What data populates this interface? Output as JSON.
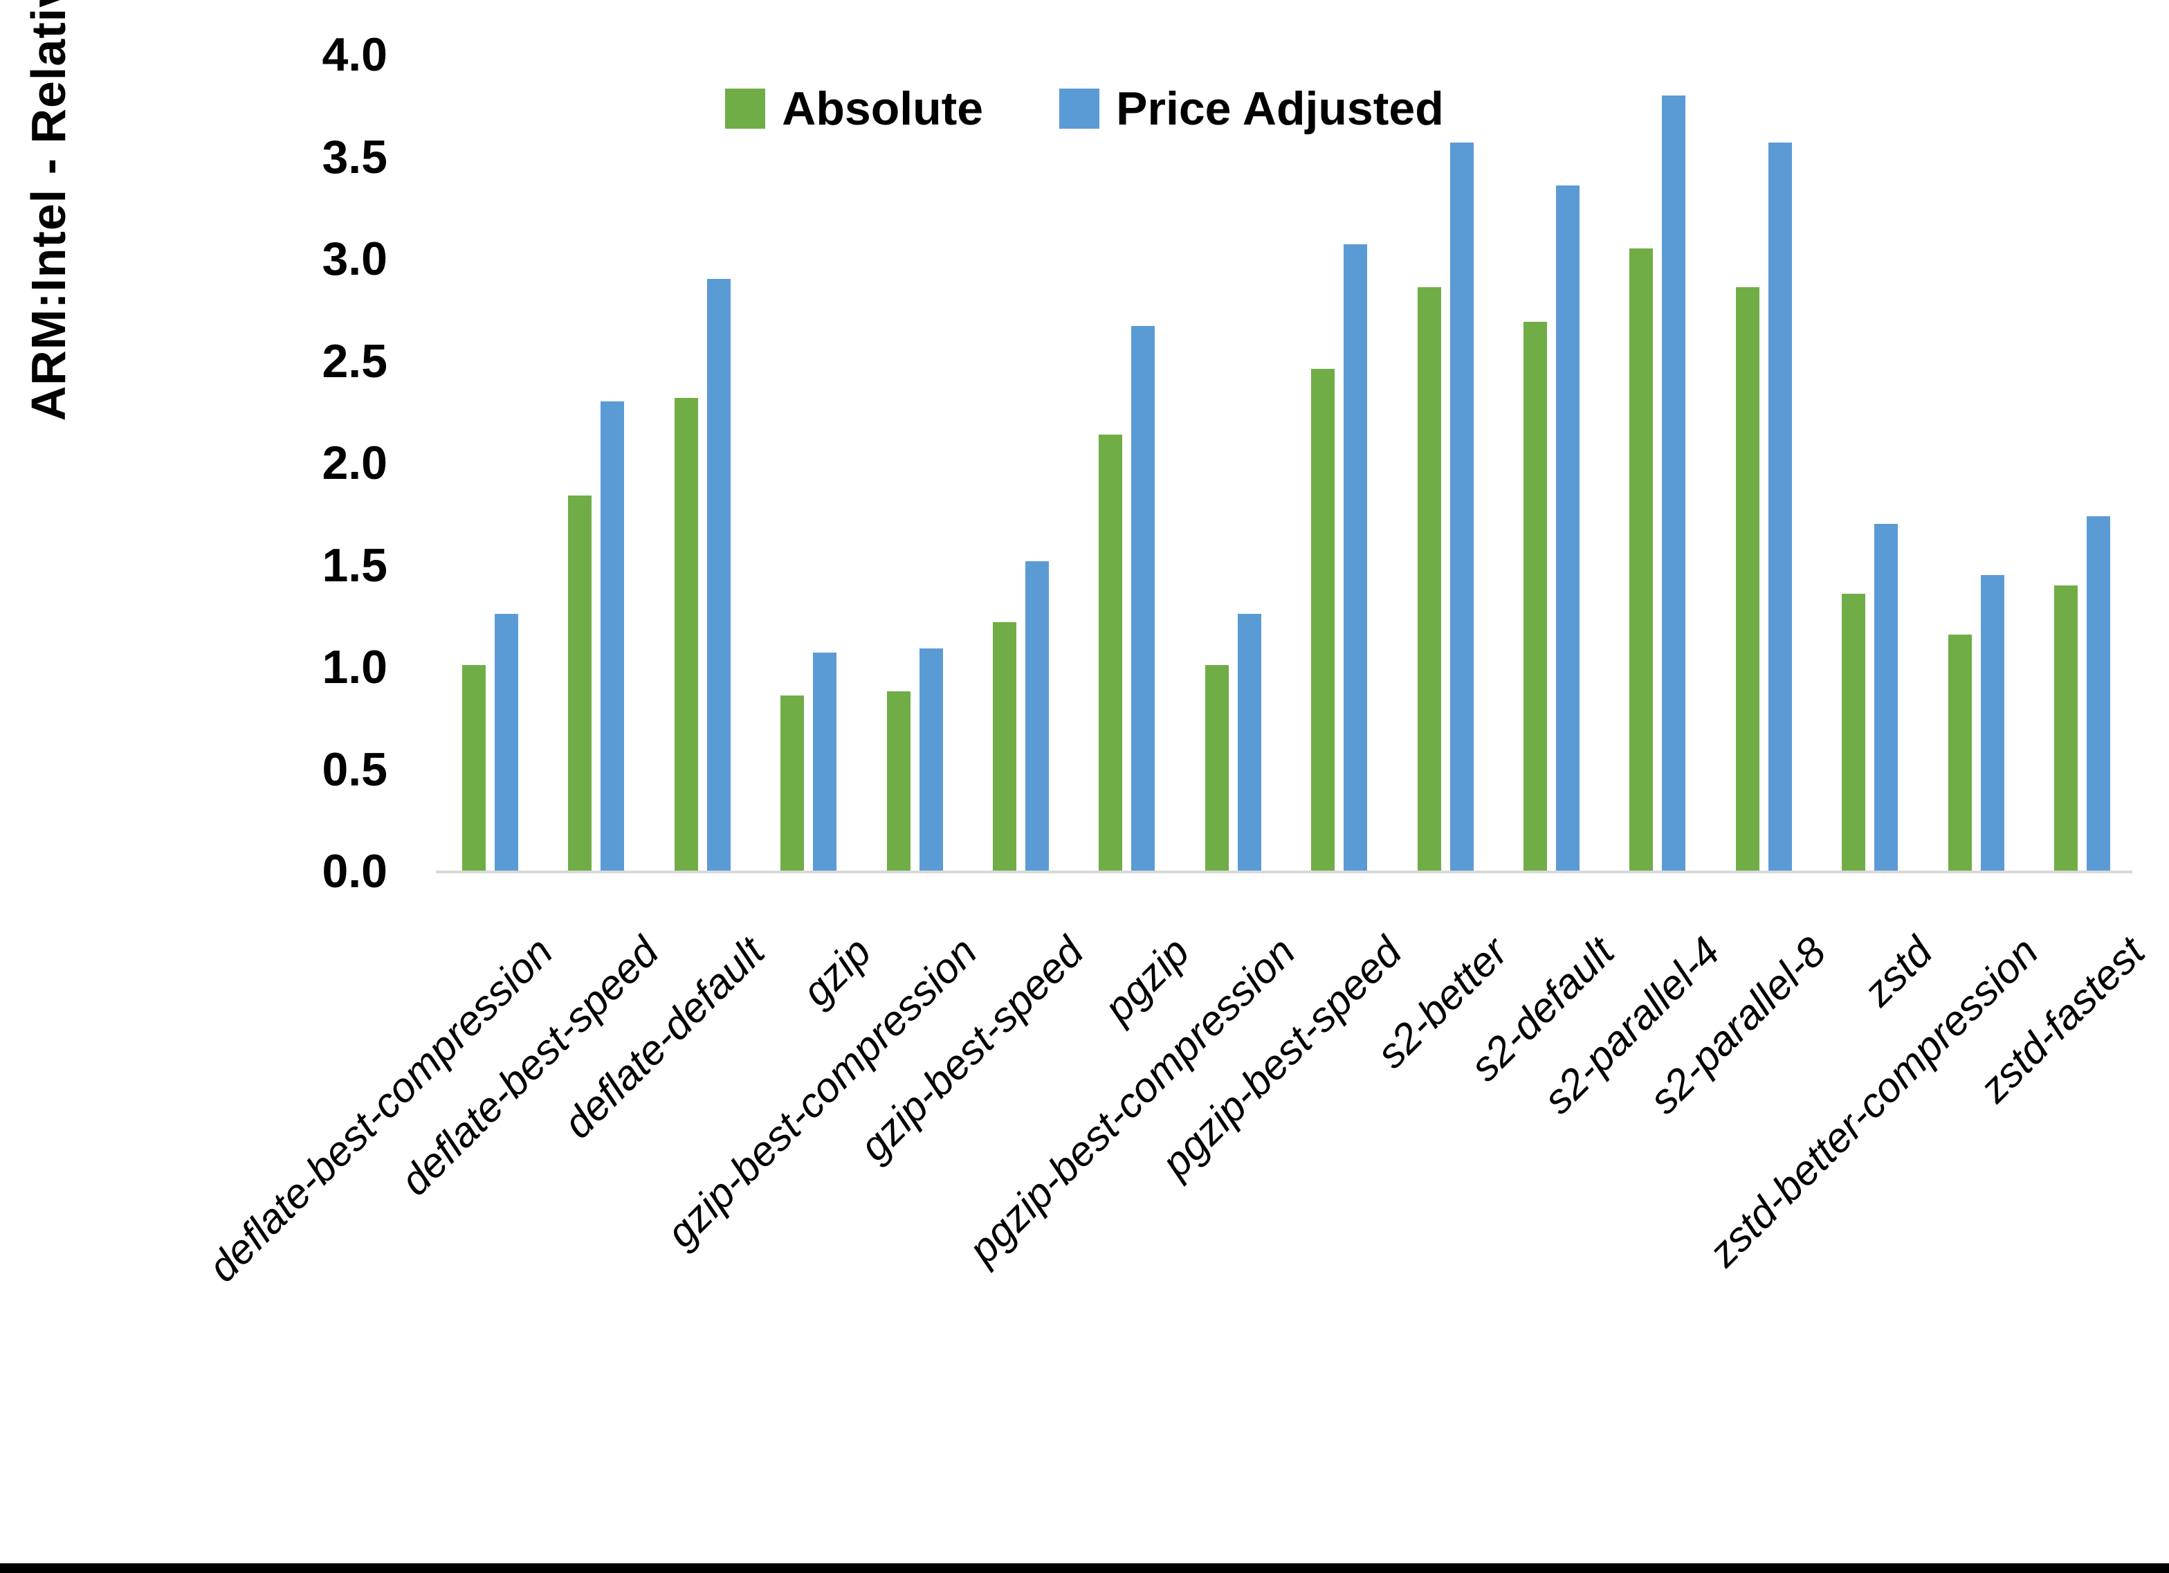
{
  "y_axis_title": "ARM:Intel - Relative Performance",
  "legend": {
    "absolute_label": "Absolute",
    "price_adjusted_label": "Price Adjusted"
  },
  "colors": {
    "absolute": "#70AD47",
    "price_adjusted": "#5B9BD5",
    "axis_line": "#D9D9D9",
    "text": "#000000",
    "background": "#FFFFFF"
  },
  "chart_data": {
    "type": "bar",
    "title": "",
    "xlabel": "",
    "ylabel": "ARM:Intel - Relative Performance",
    "categories": [
      "deflate-best-compression",
      "deflate-best-speed",
      "deflate-default",
      "gzip",
      "gzip-best-compression",
      "gzip-best-speed",
      "pgzip",
      "pgzip-best-compression",
      "pgzip-best-speed",
      "s2-better",
      "s2-default",
      "s2-parallel-4",
      "s2-parallel-8",
      "zstd",
      "zstd-better-compression",
      "zstd-fastest"
    ],
    "series": [
      {
        "name": "Absolute",
        "color": "#70AD47",
        "values": [
          1.01,
          1.84,
          2.32,
          0.86,
          0.88,
          1.22,
          2.14,
          1.01,
          2.46,
          2.86,
          2.69,
          3.05,
          2.86,
          1.36,
          1.16,
          1.4
        ]
      },
      {
        "name": "Price Adjusted",
        "color": "#5B9BD5",
        "values": [
          1.26,
          2.3,
          2.9,
          1.07,
          1.09,
          1.52,
          2.67,
          1.26,
          3.07,
          3.57,
          3.36,
          3.8,
          3.57,
          1.7,
          1.45,
          1.74
        ]
      }
    ],
    "ylim": [
      0.0,
      4.0
    ],
    "ytick_step": 0.5,
    "ytick_labels": [
      "0.0",
      "0.5",
      "1.0",
      "1.5",
      "2.0",
      "2.5",
      "3.0",
      "3.5",
      "4.0"
    ],
    "grid": false,
    "legend_position": "top-center"
  }
}
